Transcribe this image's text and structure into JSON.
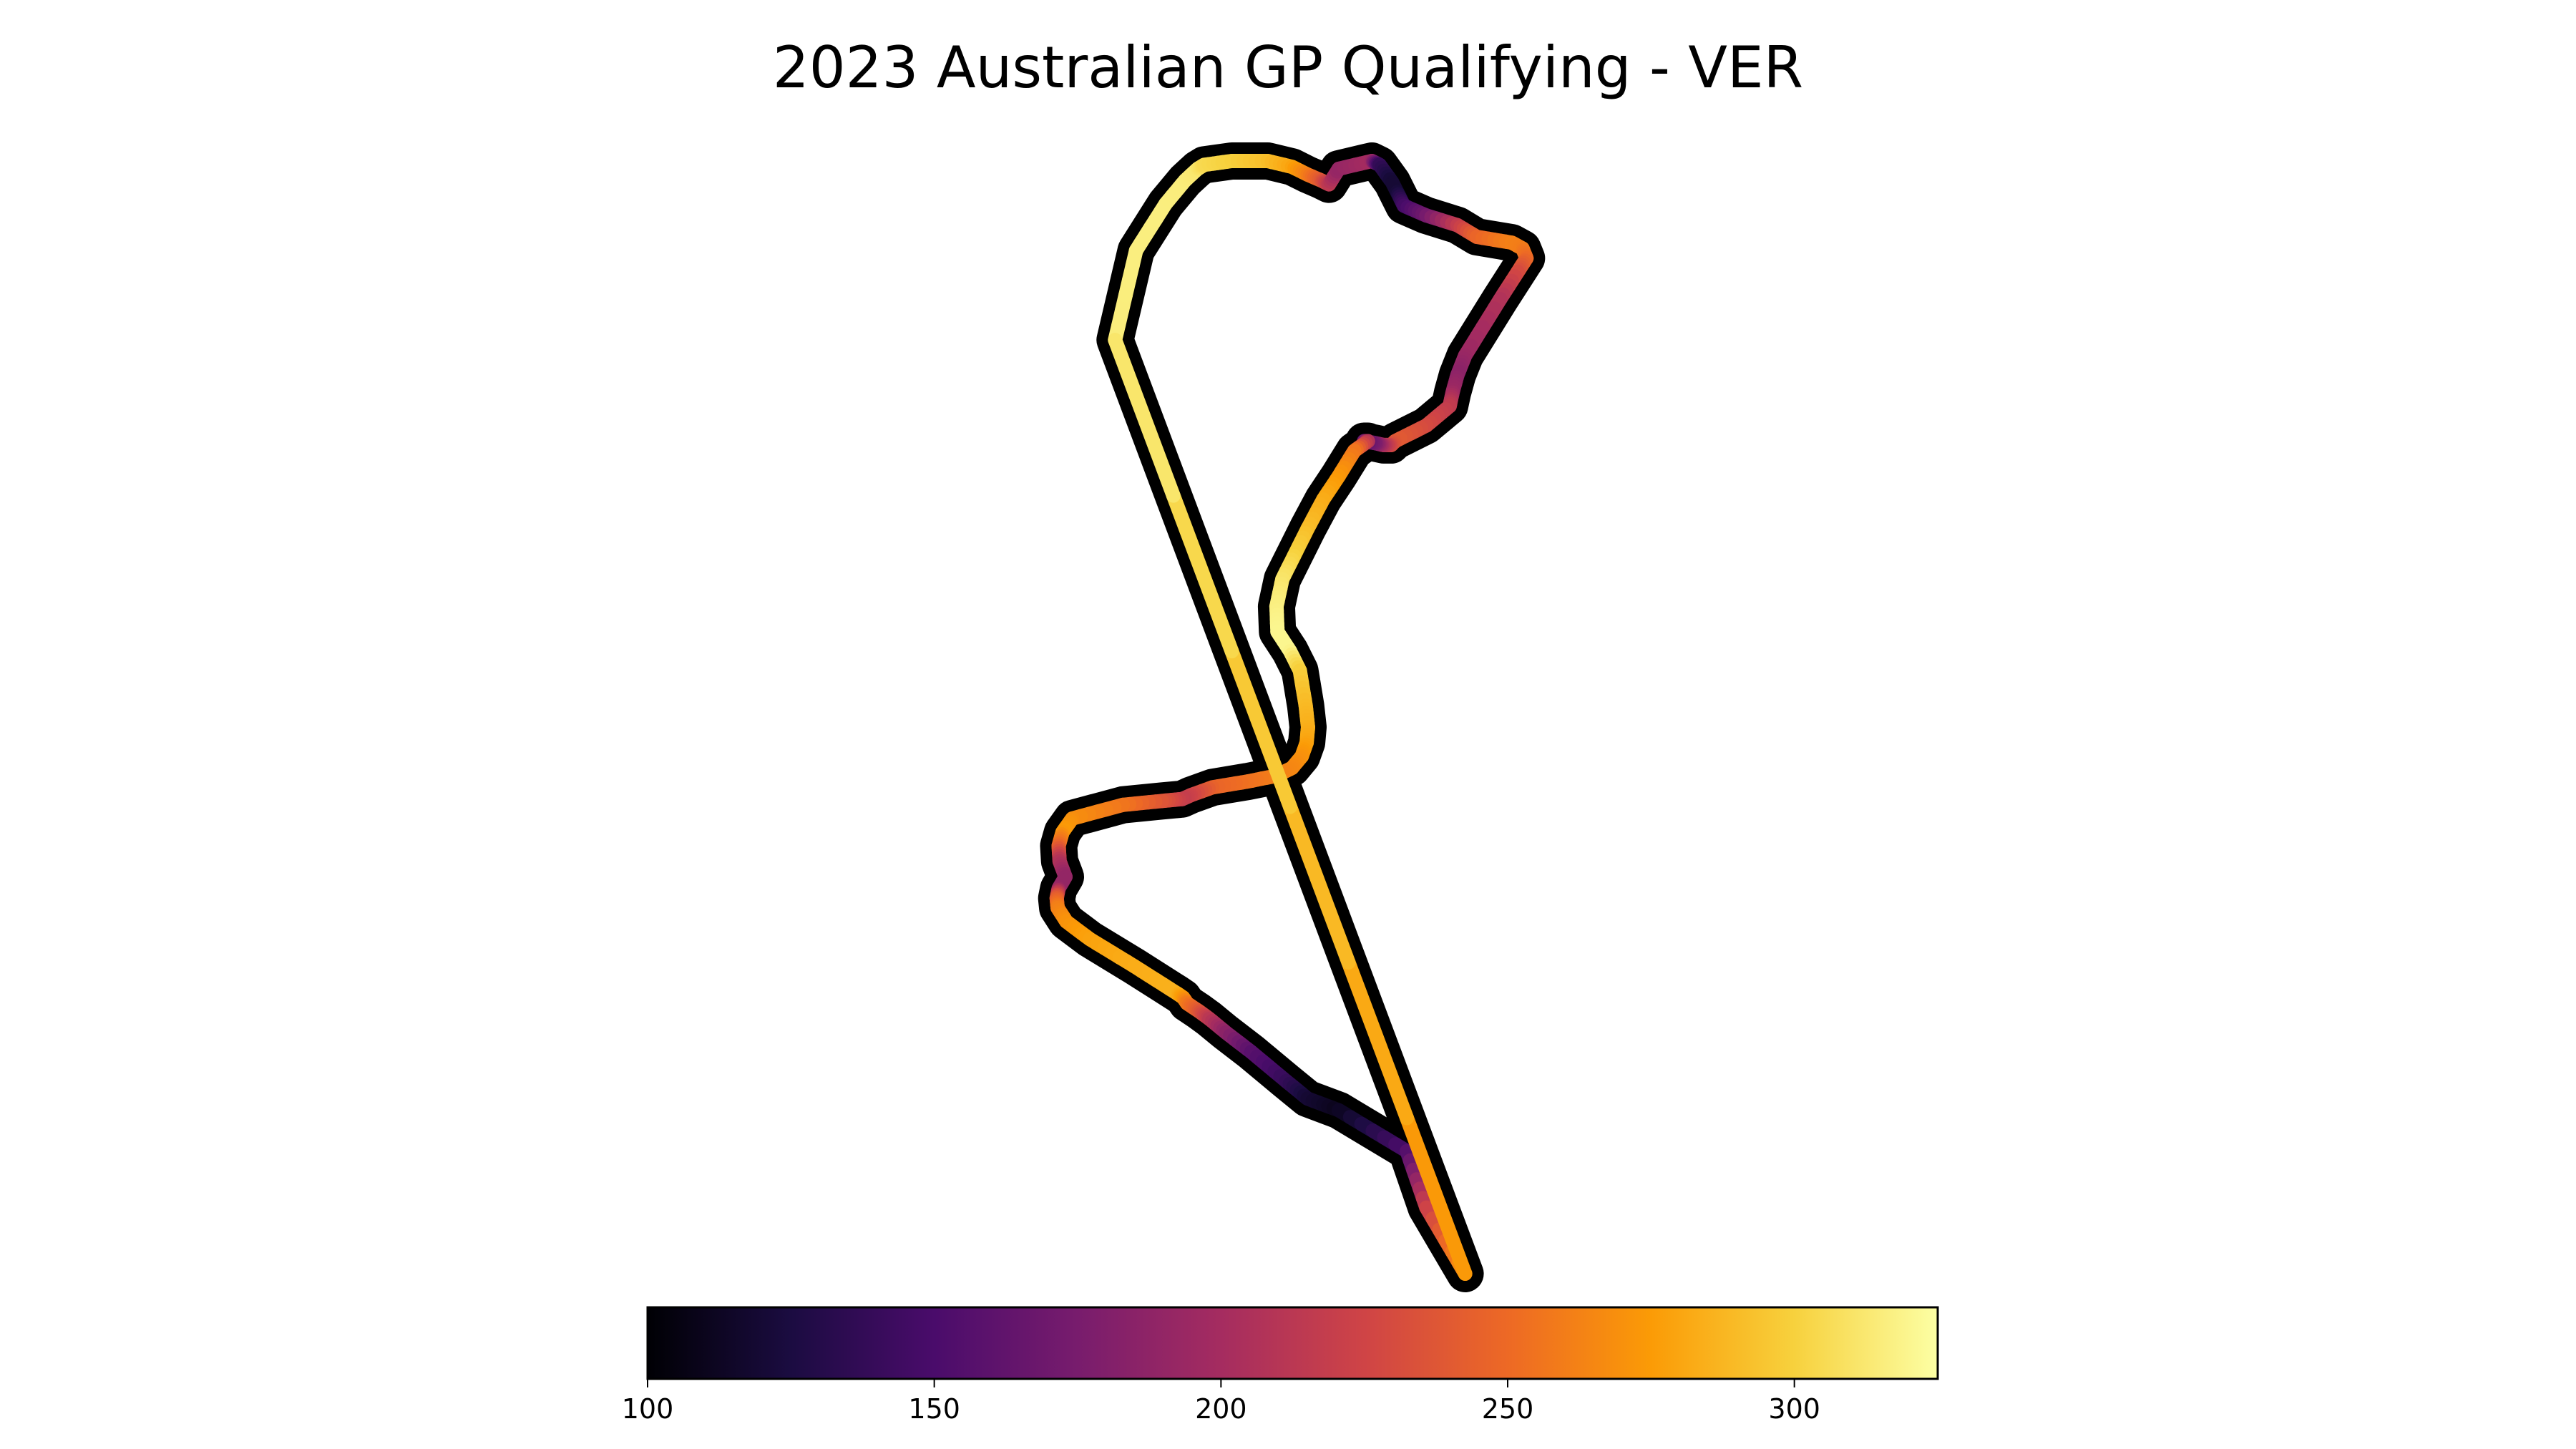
{
  "chart_data": {
    "type": "line",
    "title": "2023 Australian GP Qualifying - VER",
    "xlabel": "",
    "ylabel": "",
    "grid": false,
    "axes_visible": false,
    "series": [
      {
        "color_variable": "speed",
        "colormap": "inferno",
        "x": [
          1000,
          1108,
          1260,
          1360,
          1425,
          1458,
          1600,
          1785,
          1910,
          1990,
          2060,
          2100,
          2150,
          2320,
          2360,
          2425,
          2450,
          2485,
          2600,
          2760,
          2860,
          3040,
          3095,
          3115,
          3070,
          2980,
          2800,
          2760,
          2735,
          2720,
          2600,
          2440,
          2420,
          2380,
          2335,
          2280,
          2300,
          2230,
          2150,
          2070,
          1990,
          1920,
          1860,
          1830,
          1835,
          1900,
          1950,
          1980,
          1992,
          1985,
          1960,
          1910,
          1830,
          1680,
          1500,
          1390,
          1345,
          1240,
          1040,
          780,
          730,
          710,
          715,
          745,
          710,
          700,
          705,
          750,
          870,
          1100,
          1320,
          1350,
          1370,
          1430,
          1485,
          1570,
          1700,
          1880,
          1990,
          2150,
          2500,
          2600,
          2800
        ],
        "y": [
          -2400,
          -2860,
          -3100,
          -3220,
          -3280,
          -3300,
          -3320,
          -3320,
          -3290,
          -3250,
          -3220,
          -3200,
          -3280,
          -3320,
          -3300,
          -3210,
          -3160,
          -3090,
          -3040,
          -2990,
          -2930,
          -2900,
          -2870,
          -2820,
          -2750,
          -2610,
          -2320,
          -2220,
          -2130,
          -2060,
          -1960,
          -1880,
          -1860,
          -1860,
          -1870,
          -1880,
          -1880,
          -1830,
          -1700,
          -1580,
          -1430,
          -1290,
          -1170,
          -1030,
          -900,
          -800,
          -700,
          -520,
          -410,
          -330,
          -260,
          -200,
          -160,
          -130,
          -100,
          -60,
          -40,
          -30,
          -10,
          60,
          130,
          200,
          280,
          360,
          420,
          470,
          520,
          590,
          680,
          820,
          960,
          980,
          1010,
          1050,
          1090,
          1160,
          1260,
          1410,
          1500,
          1560,
          1770,
          2060,
          2400
        ],
        "speed": [
          315,
          316,
          316,
          315,
          312,
          305,
          300,
          292,
          280,
          262,
          240,
          216,
          190,
          200,
          140,
          120,
          120,
          145,
          170,
          215,
          246,
          262,
          260,
          252,
          232,
          208,
          195,
          185,
          195,
          215,
          228,
          240,
          232,
          210,
          178,
          160,
          205,
          255,
          272,
          282,
          290,
          300,
          310,
          316,
          320,
          320,
          300,
          290,
          285,
          280,
          272,
          266,
          262,
          255,
          247,
          225,
          218,
          235,
          255,
          268,
          275,
          250,
          210,
          190,
          190,
          240,
          260,
          270,
          278,
          283,
          285,
          275,
          260,
          240,
          215,
          188,
          160,
          140,
          120,
          110,
          150,
          220,
          270
        ]
      }
    ],
    "colorbar": {
      "range": [
        100,
        325
      ],
      "ticks": [
        100,
        150,
        200,
        250,
        300
      ],
      "tick_labels": [
        "100",
        "150",
        "200",
        "250",
        "300"
      ]
    },
    "inferno_stops": [
      "#000004",
      "#1b0c41",
      "#4a0c6b",
      "#781c6d",
      "#a52c60",
      "#cf4446",
      "#ed6925",
      "#fb9b06",
      "#f7d13d",
      "#fcffa4"
    ]
  }
}
